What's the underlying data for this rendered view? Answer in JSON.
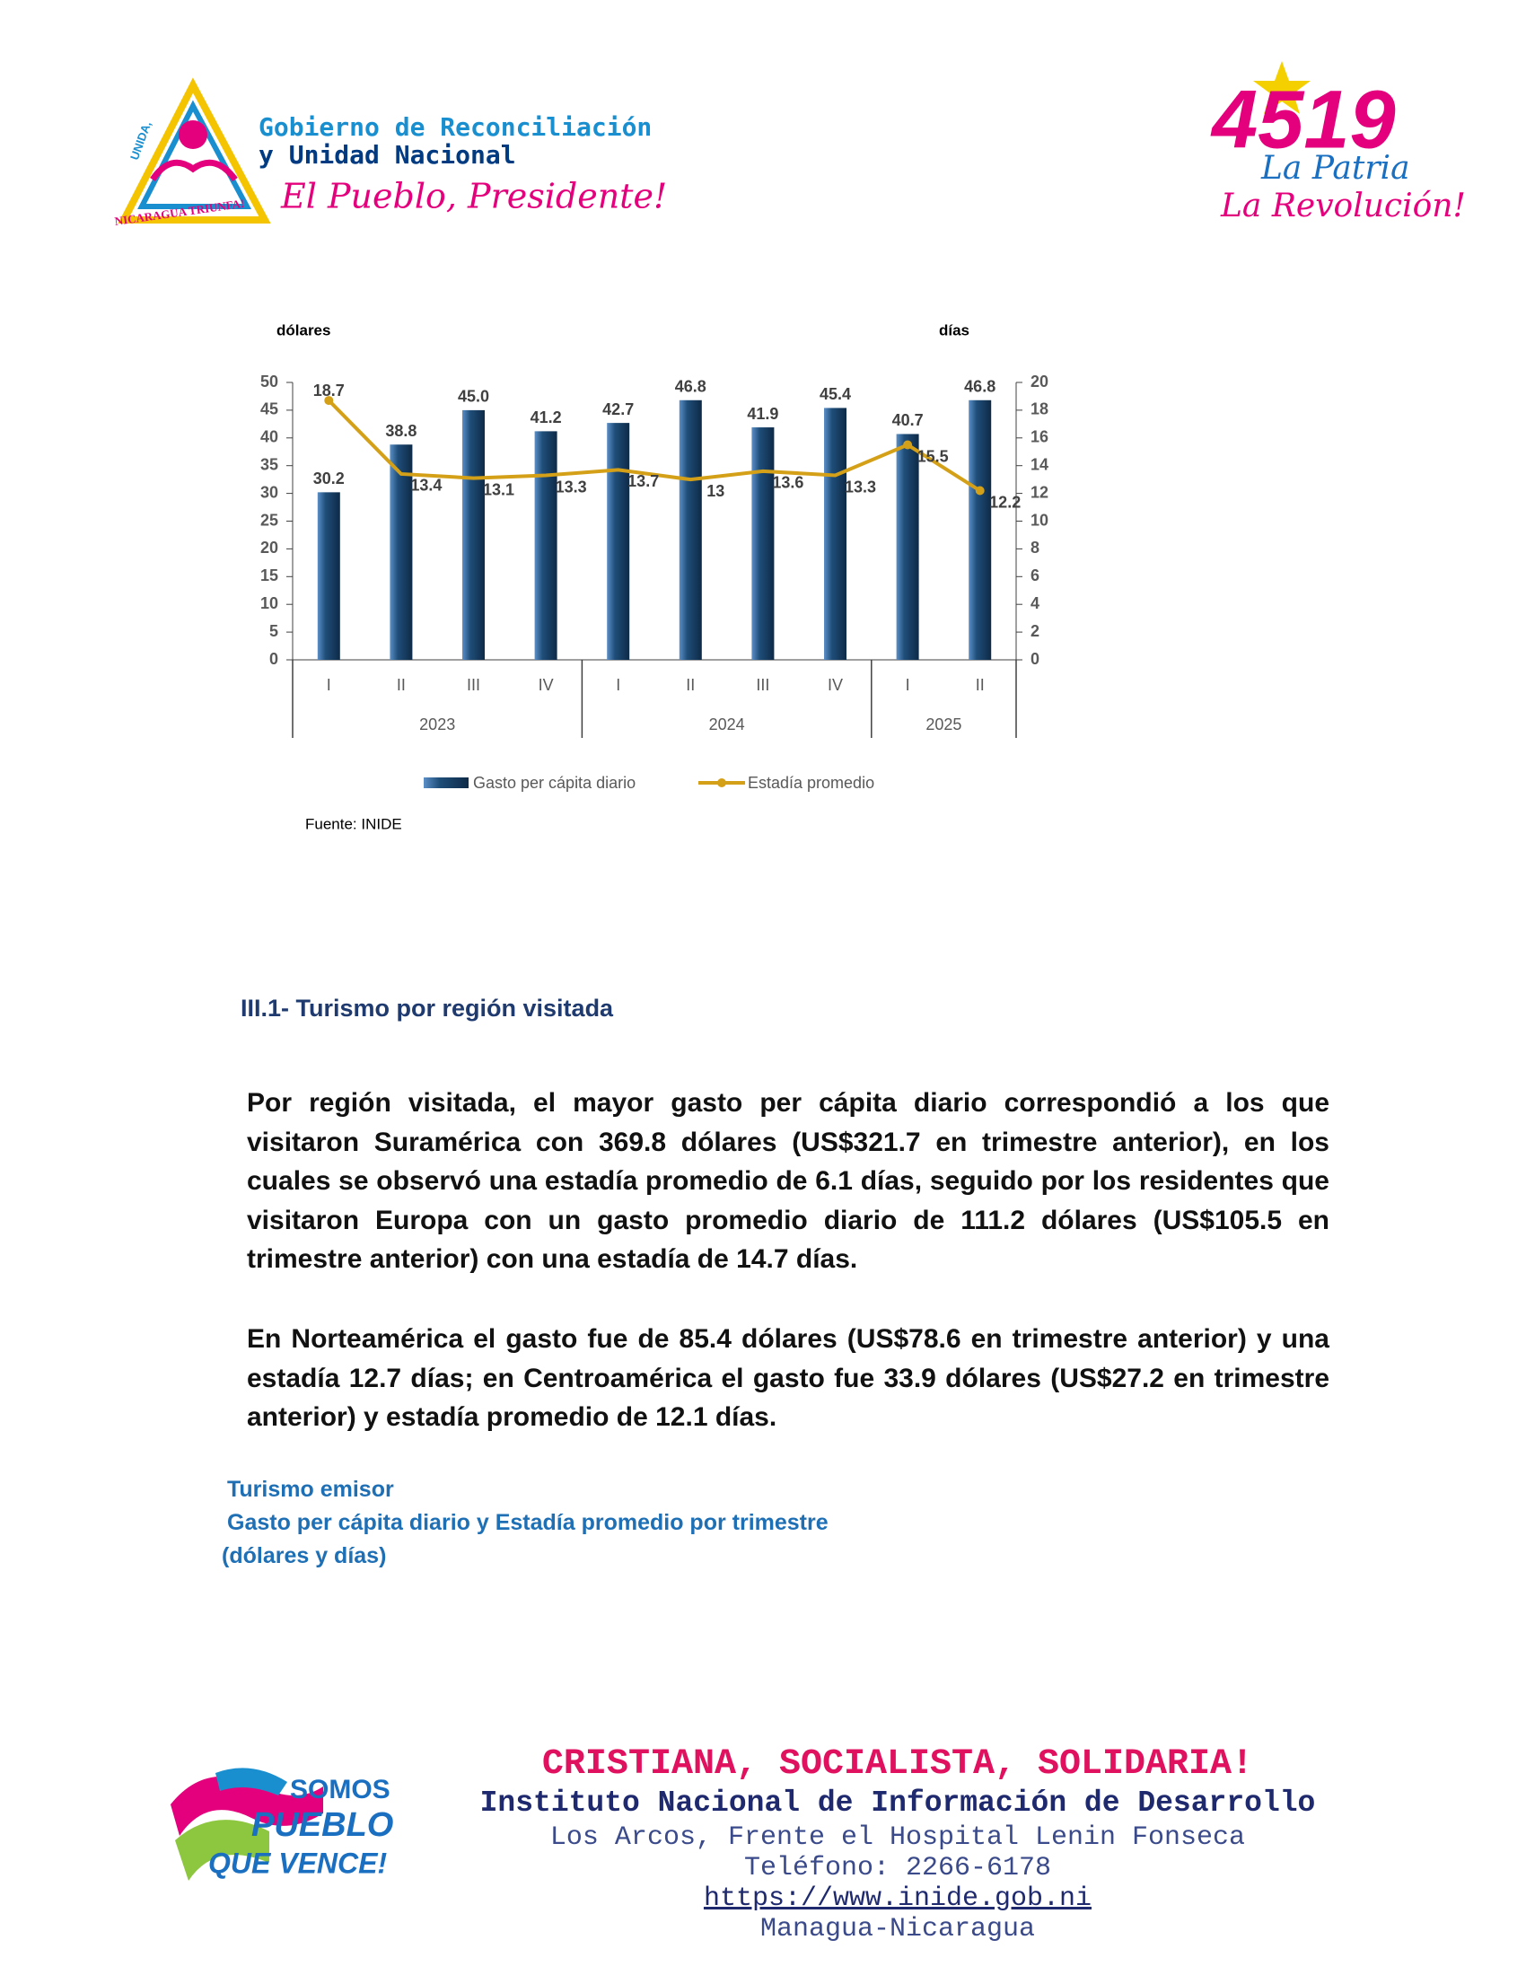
{
  "header": {
    "gov_line1": "Gobierno de Reconciliación",
    "gov_line2": "y Unidad Nacional",
    "slogan": "El Pueblo, Presidente!",
    "logo_ring_top": "UNIDA,",
    "logo_ring_bottom": "NICARAGUA TRIUNFA!",
    "badge_number": "4519",
    "badge_line1": "La Patria",
    "badge_line2": "La Revolución!"
  },
  "chart_data": {
    "type": "bar-line",
    "y_label": "dólares",
    "y2_label": "días",
    "groups": [
      {
        "name": "2023",
        "categories": [
          "I",
          "II",
          "III",
          "IV"
        ]
      },
      {
        "name": "2024",
        "categories": [
          "I",
          "II",
          "III",
          "IV"
        ]
      },
      {
        "name": "2025",
        "categories": [
          "I",
          "II"
        ]
      }
    ],
    "series": [
      {
        "name": "Gasto per cápita diario",
        "type": "bar",
        "color": "#1f4e79",
        "values": [
          30.2,
          38.8,
          45.0,
          41.2,
          42.7,
          46.8,
          41.9,
          45.4,
          40.7,
          46.8
        ],
        "value_labels": [
          "30.2",
          "38.8",
          "45.0",
          "41.2",
          "42.7",
          "46.8",
          "41.9",
          "45.4",
          "40.7",
          "46.8"
        ]
      },
      {
        "name": "Estadía promedio",
        "type": "line",
        "axis": "y2",
        "color": "#d4a017",
        "values": [
          18.7,
          13.4,
          13.1,
          13.3,
          13.7,
          13.0,
          13.6,
          13.3,
          15.5,
          12.2
        ]
      }
    ],
    "ylim": [
      0,
      50
    ],
    "yticks": [
      0,
      5,
      10,
      15,
      20,
      25,
      30,
      35,
      40,
      45,
      50
    ],
    "y2lim": [
      0,
      20
    ],
    "y2ticks": [
      0,
      2,
      4,
      6,
      8,
      10,
      12,
      14,
      16,
      18,
      20
    ],
    "source": "Fuente: INIDE"
  },
  "section": {
    "heading": "III.1- Turismo por región visitada",
    "paragraphs": [
      "Por región visitada, el mayor gasto per cápita diario correspondió a los que visitaron Suramérica con 369.8 dólares (US$321.7 en trimestre anterior), en los cuales se observó una estadía promedio de 6.1 días, seguido por los residentes que visitaron Europa con un gasto promedio diario de 111.2 dólares (US$105.5 en trimestre anterior) con una estadía de 14.7 días.",
      "En Norteamérica el gasto fue de 85.4 dólares (US$78.6 en trimestre anterior) y una estadía 12.7 días; en Centroamérica el gasto fue 33.9 dólares (US$27.2 en trimestre anterior) y estadía promedio de 12.1 días."
    ],
    "caption": [
      "Turismo emisor",
      "Gasto per cápita diario y Estadía promedio por trimestre",
      "(dólares y días)"
    ]
  },
  "footer": {
    "motto": "CRISTIANA, SOCIALISTA, SOLIDARIA!",
    "institute": "Instituto Nacional de Información de Desarrollo",
    "address": "Los Arcos, Frente el Hospital Lenin Fonseca",
    "phone": "Teléfono: 2266-6178",
    "url": "https://www.inide.gob.ni",
    "city": "Managua-Nicaragua",
    "logo_line1": "SOMOS",
    "logo_line2": "PUEBLO",
    "logo_line3": "QUE VENCE!"
  }
}
